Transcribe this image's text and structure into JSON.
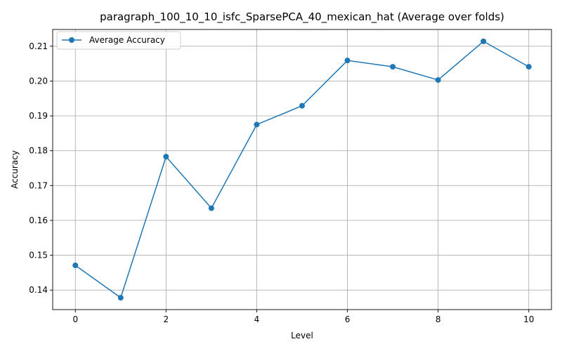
{
  "chart_data": {
    "type": "line",
    "title": "paragraph_100_10_10_isfc_SparsePCA_40_mexican_hat (Average over folds)",
    "xlabel": "Level",
    "ylabel": "Accuracy",
    "xlim": [
      -0.5,
      10.5
    ],
    "ylim": [
      0.1344,
      0.2148
    ],
    "xticks": [
      0,
      2,
      4,
      6,
      8,
      10
    ],
    "yticks": [
      0.14,
      0.15,
      0.16,
      0.17,
      0.18,
      0.19,
      0.2,
      0.21
    ],
    "ytick_labels": [
      "0.14",
      "0.15",
      "0.16",
      "0.17",
      "0.18",
      "0.19",
      "0.20",
      "0.21"
    ],
    "grid": true,
    "legend_position": "top-left",
    "series": [
      {
        "name": "Average Accuracy",
        "color": "#1f77b4",
        "marker": "circle",
        "x": [
          0,
          1,
          2,
          3,
          4,
          5,
          6,
          7,
          8,
          9,
          10
        ],
        "y": [
          0.1471,
          0.1378,
          0.1783,
          0.1635,
          0.1875,
          0.1929,
          0.2059,
          0.2041,
          0.2003,
          0.2114,
          0.2041
        ]
      }
    ]
  }
}
